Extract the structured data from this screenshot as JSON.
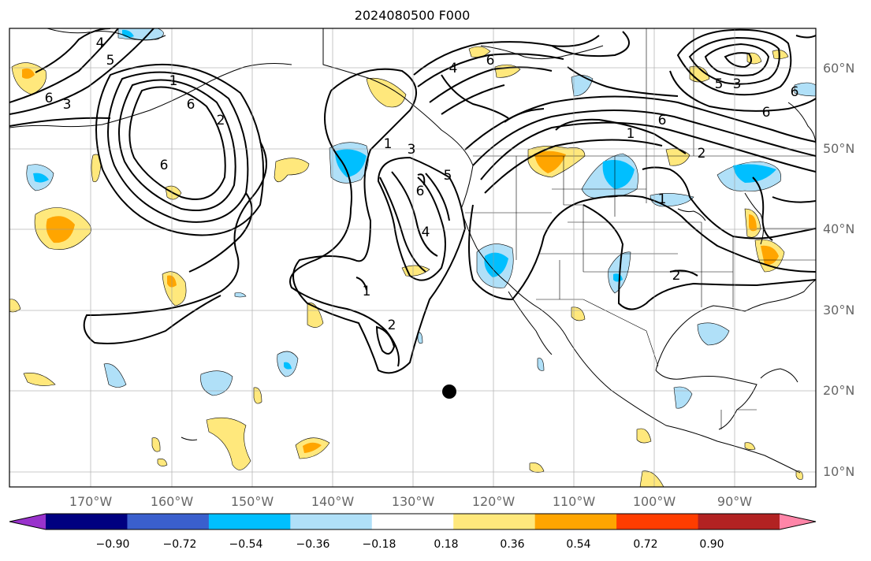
{
  "title": "2024080500 F000",
  "lat_labels": [
    "60°N",
    "50°N",
    "40°N",
    "30°N",
    "20°N",
    "10°N"
  ],
  "lon_labels": [
    "170°W",
    "160°W",
    "150°W",
    "140°W",
    "130°W",
    "120°W",
    "110°W",
    "100°W",
    "90°W"
  ],
  "colorbar": {
    "colors": [
      "#9932cc",
      "#000080",
      "#3a5fcd",
      "#00bfff",
      "#b0e0f8",
      "#ffffff",
      "#ffe87c",
      "#ffa500",
      "#ff3d00",
      "#b22222",
      "#ff85a8"
    ],
    "labels": [
      "−0.90",
      "−0.72",
      "−0.54",
      "−0.36",
      "−0.18",
      "0.18",
      "0.36",
      "0.54",
      "0.72",
      "0.90"
    ]
  },
  "contour_labels": [
    "6",
    "3",
    "4",
    "5",
    "2",
    "6",
    "6",
    "1",
    "3",
    "1",
    "6",
    "5",
    "4",
    "1",
    "2",
    "6",
    "4",
    "1",
    "6",
    "2",
    "1",
    "2",
    "6",
    "5",
    "6",
    "3"
  ],
  "marker": "storm-center-dot"
}
